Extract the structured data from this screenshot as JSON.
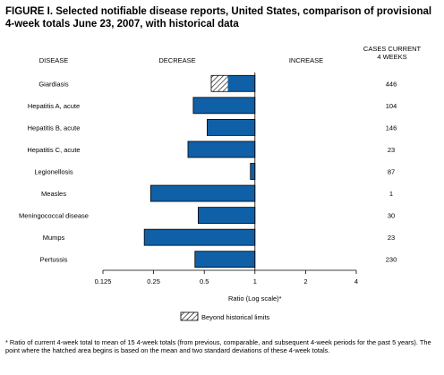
{
  "title": "FIGURE I. Selected notifiable disease reports, United States, comparison of provisional 4-week totals June 23, 2007, with historical data",
  "headers": {
    "disease": "DISEASE",
    "decrease": "DECREASE",
    "increase": "INCREASE",
    "cases_line1": "CASES CURRENT",
    "cases_line2": "4 WEEKS"
  },
  "legend_label": "Beyond historical limits",
  "footnote": "* Ratio of current 4-week total to mean of 15 4-week totals (from previous, comparable, and subsequent 4-week periods for the past 5 years). The point where the hatched area begins is based on the mean and two standard deviations of these 4-week totals.",
  "colors": {
    "bar": "#1060a8",
    "bar_stroke": "#000000",
    "hatch": "#000000"
  },
  "chart_data": {
    "type": "bar",
    "orientation": "horizontal",
    "x_scale": "log",
    "xlabel": "Ratio (Log scale)*",
    "xlim": [
      0.125,
      4
    ],
    "xticks": [
      0.125,
      0.25,
      0.5,
      1,
      2,
      4
    ],
    "xtick_labels": [
      "0.125",
      "0.25",
      "0.5",
      "1",
      "2",
      "4"
    ],
    "baseline": 1,
    "categories": [
      "Giardiasis",
      "Hepatitis A, acute",
      "Hepatitis B, acute",
      "Hepatitis C, acute",
      "Legionellosis",
      "Measles",
      "Meningococcal disease",
      "Mumps",
      "Pertussis"
    ],
    "values": [
      0.55,
      0.43,
      0.52,
      0.4,
      0.94,
      0.24,
      0.46,
      0.22,
      0.44
    ],
    "historical_limit": [
      0.69,
      null,
      null,
      null,
      null,
      null,
      null,
      null,
      null
    ],
    "cases_current_4_weeks": [
      "446",
      "104",
      "146",
      "23",
      "87",
      "1",
      "30",
      "23",
      "230"
    ]
  }
}
